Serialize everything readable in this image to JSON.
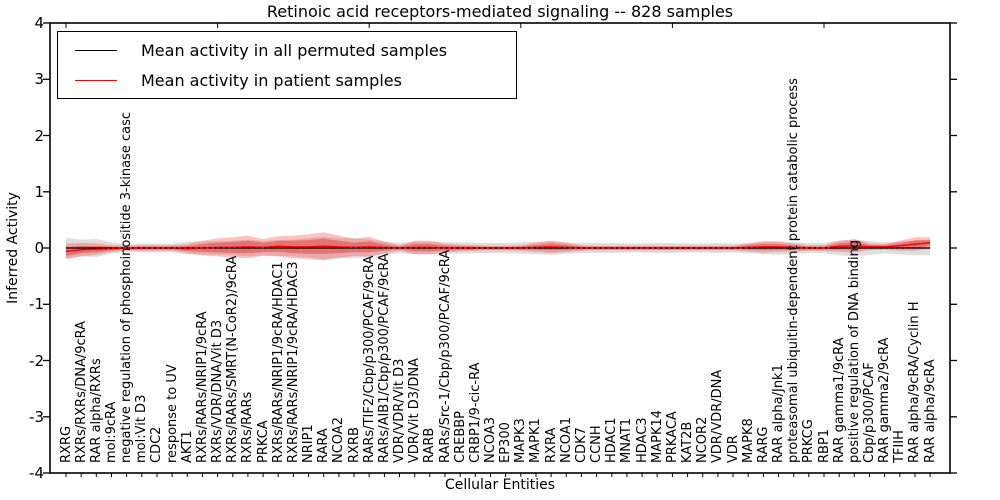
{
  "title": "Retinoic acid receptors-mediated signaling -- 828 samples",
  "legend": {
    "items": [
      {
        "label": "Mean activity in all permuted samples",
        "color": "#000000"
      },
      {
        "label": "Mean activity in patient samples",
        "color": "#ff0000"
      }
    ]
  },
  "colors": {
    "permuted_line": "#000000",
    "patient_line": "#ff0000",
    "permuted_band": "rgba(0,0,0,0.13)",
    "patient_band": "rgba(255,45,45,0.30)",
    "patient_band_inner": "rgba(225,40,40,0.42)",
    "zero_dotted_line": "#000000",
    "axis": "#000000"
  },
  "chart_data": {
    "type": "line",
    "title": "Retinoic acid receptors-mediated signaling -- 828 samples",
    "xlabel": "Cellular Entities",
    "ylabel": "Inferred Activity",
    "ylim": [
      -4,
      4
    ],
    "yticks": [
      "4",
      "3",
      "2",
      "1",
      "0",
      "-1",
      "-2",
      "-3",
      "-4"
    ],
    "grid": false,
    "legend_position": "upper left",
    "zero_line_style": "dotted",
    "categories": [
      "RXRG",
      "RXRs/RXRs/DNA/9cRA",
      "RAR alpha/RXRs",
      "mol:9cRA",
      "negative regulation of phosphoinositide 3-kinase casc",
      "mol:Vit D3",
      "CDC2",
      "response to UV",
      "AKT1",
      "RXRs/RARs/NRIP1/9cRA",
      "RXRs/VDR/DNA/Vit D3",
      "RXRs/RARs/SMRT(N-CoR2)/9cRA",
      "RXRs/RARs",
      "PRKCA",
      "RXRs/RARs/NRIP1/9cRA/HDAC1",
      "RXRs/RARs/NRIP1/9cRA/HDAC3",
      "NRIP1",
      "RARA",
      "NCOA2",
      "RXRB",
      "RARs/TIF2/Cbp/p300/PCAF/9cRA",
      "RARs/AIB1/Cbp/p300/PCAF/9cRA",
      "VDR/VDR/Vit D3",
      "VDR/Vit D3/DNA",
      "RARB",
      "RARs/Src-1/Cbp/p300/PCAF/9cRA",
      "CREBBP",
      "CRBP1/9-cic-RA",
      "NCOA3",
      "EP300",
      "MAPK3",
      "MAPK1",
      "RXRA",
      "NCOA1",
      "CDK7",
      "CCNH",
      "HDAC1",
      "MNAT1",
      "HDAC3",
      "MAPK14",
      "PRKACA",
      "KAT2B",
      "NCOR2",
      "VDR/VDR/DNA",
      "VDR",
      "MAPK8",
      "RARG",
      "RAR alpha/Jnk1",
      "proteasomal ubiquitin-dependent protein catabolic process",
      "PRKCG",
      "RBP1",
      "RAR gamma1/9cRA",
      "positive regulation of DNA binding",
      "Cbp/p300/PCAF",
      "RAR gamma2/9cRA",
      "TFIIH",
      "RAR alpha/9cRA/Cyclin H",
      "RAR alpha/9cRA"
    ],
    "series": [
      {
        "name": "Mean activity in all permuted samples",
        "color": "#000000",
        "values": [
          0,
          0,
          0,
          0,
          0,
          0,
          0,
          0,
          0,
          0,
          0,
          0,
          0,
          0,
          0,
          0,
          0,
          0,
          0,
          0,
          0,
          0,
          0,
          0,
          0,
          0,
          0,
          0,
          0,
          0,
          0,
          0,
          0,
          0,
          0,
          0,
          0,
          0,
          0,
          0,
          0,
          0,
          0,
          0,
          0,
          0,
          0,
          0,
          0,
          0,
          0,
          0,
          0,
          0,
          0,
          0,
          0,
          0
        ],
        "band_halfwidth": [
          0.18,
          0.15,
          0.16,
          0.1,
          0.07,
          0.08,
          0.08,
          0.08,
          0.11,
          0.12,
          0.12,
          0.13,
          0.15,
          0.13,
          0.14,
          0.15,
          0.17,
          0.2,
          0.17,
          0.18,
          0.15,
          0.12,
          0.09,
          0.11,
          0.11,
          0.1,
          0.1,
          0.09,
          0.09,
          0.09,
          0.1,
          0.11,
          0.12,
          0.1,
          0.09,
          0.09,
          0.09,
          0.08,
          0.08,
          0.09,
          0.09,
          0.08,
          0.08,
          0.09,
          0.08,
          0.09,
          0.11,
          0.12,
          0.1,
          0.09,
          0.09,
          0.13,
          0.15,
          0.12,
          0.1,
          0.11,
          0.13,
          0.13
        ]
      },
      {
        "name": "Mean activity in patient samples",
        "color": "#ff0000",
        "values": [
          -0.06,
          -0.03,
          -0.02,
          -0.01,
          0,
          0,
          0,
          0,
          -0.01,
          0,
          0.01,
          0.01,
          0.02,
          0.01,
          0.03,
          0.02,
          0.02,
          0.03,
          0.02,
          0.01,
          0.02,
          0.01,
          0,
          0.01,
          0.01,
          0,
          0,
          0,
          0,
          0,
          0,
          0.01,
          0.02,
          0.01,
          0,
          0,
          0,
          0,
          0,
          0,
          0,
          0,
          0,
          0,
          0,
          0.01,
          0.02,
          0.02,
          0.01,
          0,
          0,
          0.03,
          0.04,
          0.02,
          0.02,
          0.04,
          0.07,
          0.09
        ],
        "band_halfwidth": [
          0.14,
          0.12,
          0.1,
          0.06,
          0.04,
          0.05,
          0.05,
          0.05,
          0.08,
          0.13,
          0.16,
          0.18,
          0.2,
          0.15,
          0.18,
          0.2,
          0.22,
          0.25,
          0.2,
          0.15,
          0.18,
          0.1,
          0.05,
          0.12,
          0.12,
          0.08,
          0.06,
          0.05,
          0.04,
          0.04,
          0.05,
          0.08,
          0.11,
          0.08,
          0.05,
          0.04,
          0.04,
          0.04,
          0.04,
          0.04,
          0.04,
          0.04,
          0.04,
          0.04,
          0.04,
          0.07,
          0.1,
          0.09,
          0.07,
          0.05,
          0.05,
          0.1,
          0.12,
          0.06,
          0.05,
          0.09,
          0.12,
          0.1
        ]
      }
    ]
  }
}
